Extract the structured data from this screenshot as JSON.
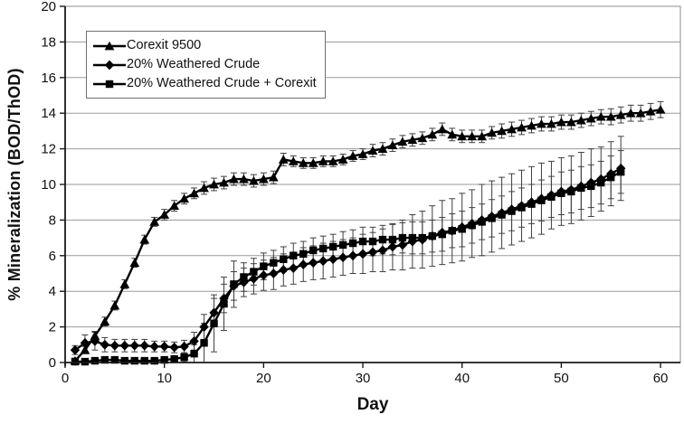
{
  "chart_data": {
    "type": "line",
    "title": "",
    "xlabel": "Day",
    "ylabel": "% Mineralization (BOD/ThOD)",
    "xlim": [
      0,
      62
    ],
    "ylim": [
      0,
      20
    ],
    "xticks": [
      0,
      10,
      20,
      30,
      40,
      50,
      60
    ],
    "yticks": [
      0,
      2,
      4,
      6,
      8,
      10,
      12,
      14,
      16,
      18,
      20
    ],
    "grid": "horizontal",
    "legend_position": "top-left",
    "error_bars": true,
    "colors": {
      "series": "#000000",
      "grid": "#9a9a9a",
      "plot_border": "#8c8c8c",
      "axis": "#1a1a1a",
      "error_bar": "#3f3f3f",
      "background": "#ffffff"
    },
    "series": [
      {
        "name": "Corexit 9500",
        "marker": "triangle",
        "x": [
          1,
          2,
          3,
          4,
          5,
          6,
          7,
          8,
          9,
          10,
          11,
          12,
          13,
          14,
          15,
          16,
          17,
          18,
          19,
          20,
          21,
          22,
          23,
          24,
          25,
          26,
          27,
          28,
          29,
          30,
          31,
          32,
          33,
          34,
          35,
          36,
          37,
          38,
          39,
          40,
          41,
          42,
          43,
          44,
          45,
          46,
          47,
          48,
          49,
          50,
          51,
          52,
          53,
          54,
          55,
          56,
          57,
          58,
          59,
          60
        ],
        "y": [
          0.1,
          0.7,
          1.5,
          2.3,
          3.2,
          4.4,
          5.6,
          6.9,
          7.9,
          8.3,
          8.8,
          9.2,
          9.5,
          9.8,
          10.0,
          10.1,
          10.3,
          10.3,
          10.2,
          10.3,
          10.4,
          11.4,
          11.3,
          11.2,
          11.2,
          11.3,
          11.3,
          11.4,
          11.6,
          11.7,
          11.9,
          12.0,
          12.2,
          12.4,
          12.5,
          12.6,
          12.8,
          13.1,
          12.8,
          12.7,
          12.7,
          12.7,
          12.9,
          13.0,
          13.1,
          13.2,
          13.3,
          13.4,
          13.4,
          13.5,
          13.5,
          13.6,
          13.7,
          13.8,
          13.8,
          13.9,
          14.0,
          14.0,
          14.1,
          14.2
        ],
        "err": [
          0.15,
          0.2,
          0.25,
          0.25,
          0.25,
          0.25,
          0.25,
          0.25,
          0.25,
          0.3,
          0.3,
          0.3,
          0.3,
          0.35,
          0.35,
          0.35,
          0.35,
          0.35,
          0.35,
          0.35,
          0.35,
          0.35,
          0.3,
          0.3,
          0.3,
          0.3,
          0.3,
          0.3,
          0.3,
          0.3,
          0.35,
          0.35,
          0.35,
          0.35,
          0.35,
          0.35,
          0.35,
          0.35,
          0.35,
          0.35,
          0.35,
          0.35,
          0.35,
          0.4,
          0.4,
          0.4,
          0.4,
          0.4,
          0.4,
          0.4,
          0.4,
          0.4,
          0.4,
          0.4,
          0.45,
          0.45,
          0.45,
          0.45,
          0.45,
          0.45
        ]
      },
      {
        "name": "20% Weathered Crude",
        "marker": "diamond",
        "x": [
          1,
          2,
          3,
          4,
          5,
          6,
          7,
          8,
          9,
          10,
          11,
          12,
          13,
          14,
          15,
          16,
          17,
          18,
          19,
          20,
          21,
          22,
          23,
          24,
          25,
          26,
          27,
          28,
          29,
          30,
          31,
          32,
          33,
          34,
          35,
          36,
          37,
          38,
          39,
          40,
          41,
          42,
          43,
          44,
          45,
          46,
          47,
          48,
          49,
          50,
          51,
          52,
          53,
          54,
          55,
          56
        ],
        "y": [
          0.7,
          1.1,
          1.2,
          1.0,
          0.95,
          0.95,
          0.95,
          0.95,
          0.9,
          0.9,
          0.85,
          0.9,
          1.2,
          2.0,
          2.8,
          3.6,
          4.3,
          4.5,
          4.7,
          4.9,
          5.0,
          5.2,
          5.3,
          5.5,
          5.6,
          5.7,
          5.8,
          5.9,
          6.0,
          6.1,
          6.2,
          6.3,
          6.5,
          6.6,
          6.8,
          6.9,
          7.1,
          7.3,
          7.4,
          7.6,
          7.8,
          8.0,
          8.2,
          8.4,
          8.6,
          8.8,
          9.0,
          9.2,
          9.4,
          9.6,
          9.7,
          9.9,
          10.1,
          10.3,
          10.6,
          10.9
        ],
        "err": [
          0.25,
          0.45,
          0.5,
          0.4,
          0.35,
          0.35,
          0.35,
          0.35,
          0.3,
          0.3,
          0.3,
          0.35,
          0.5,
          0.7,
          0.8,
          0.8,
          0.8,
          0.8,
          0.85,
          0.85,
          0.9,
          0.9,
          0.9,
          0.95,
          0.95,
          1.0,
          1.0,
          1.0,
          1.0,
          1.1,
          1.1,
          1.2,
          1.3,
          1.4,
          1.5,
          1.6,
          1.7,
          1.8,
          1.8,
          1.9,
          1.9,
          2.0,
          2.0,
          2.0,
          2.0,
          2.0,
          2.0,
          2.0,
          1.9,
          1.9,
          1.9,
          1.9,
          1.9,
          1.8,
          1.8,
          1.8
        ]
      },
      {
        "name": "20% Weathered Crude + Corexit",
        "marker": "square",
        "x": [
          1,
          2,
          3,
          4,
          5,
          6,
          7,
          8,
          9,
          10,
          11,
          12,
          13,
          14,
          15,
          16,
          17,
          18,
          19,
          20,
          21,
          22,
          23,
          24,
          25,
          26,
          27,
          28,
          29,
          30,
          31,
          32,
          33,
          34,
          35,
          36,
          37,
          38,
          39,
          40,
          41,
          42,
          43,
          44,
          45,
          46,
          47,
          48,
          49,
          50,
          51,
          52,
          53,
          54,
          55,
          56
        ],
        "y": [
          0.05,
          0.05,
          0.1,
          0.15,
          0.15,
          0.1,
          0.1,
          0.1,
          0.1,
          0.15,
          0.2,
          0.3,
          0.5,
          1.1,
          2.2,
          3.3,
          4.4,
          4.8,
          5.1,
          5.4,
          5.6,
          5.8,
          6.0,
          6.1,
          6.3,
          6.4,
          6.5,
          6.6,
          6.7,
          6.8,
          6.8,
          6.9,
          6.9,
          7.0,
          7.0,
          7.0,
          7.1,
          7.2,
          7.4,
          7.5,
          7.7,
          7.9,
          8.1,
          8.3,
          8.5,
          8.7,
          8.9,
          9.1,
          9.3,
          9.5,
          9.6,
          9.8,
          9.9,
          10.1,
          10.4,
          10.7
        ],
        "err": [
          0.05,
          0.05,
          0.08,
          0.1,
          0.1,
          0.08,
          0.08,
          0.08,
          0.08,
          0.1,
          0.15,
          0.25,
          0.5,
          1.1,
          1.6,
          1.5,
          1.3,
          0.8,
          0.75,
          0.75,
          0.7,
          0.7,
          0.7,
          0.7,
          0.7,
          0.7,
          0.7,
          0.75,
          0.75,
          0.8,
          0.8,
          0.8,
          0.85,
          0.85,
          0.9,
          0.9,
          0.9,
          0.95,
          0.95,
          1.0,
          1.0,
          1.0,
          1.05,
          1.05,
          1.1,
          1.1,
          1.1,
          1.15,
          1.15,
          1.2,
          1.2,
          1.2,
          1.2,
          1.2,
          1.2,
          1.2
        ]
      }
    ]
  }
}
